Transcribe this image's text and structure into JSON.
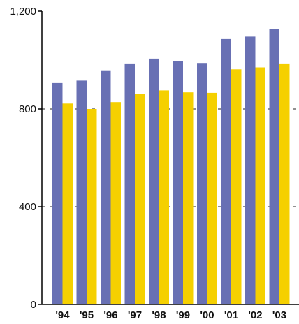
{
  "chart_data": {
    "type": "bar",
    "title": "",
    "xlabel": "",
    "ylabel": "",
    "categories": [
      "'94",
      "'95",
      "'96",
      "'97",
      "'98",
      "'99",
      "'00",
      "'01",
      "'02",
      "'03"
    ],
    "series": [
      {
        "color": "#6870b4",
        "values": [
          906,
          916,
          958,
          986,
          1006,
          996,
          988,
          1086,
          1096,
          1126
        ]
      },
      {
        "color": "#f5d000",
        "values": [
          822,
          800,
          828,
          860,
          876,
          868,
          866,
          962,
          970,
          986
        ]
      }
    ],
    "ylim": [
      0,
      1200
    ],
    "yticks": [
      0,
      400,
      800,
      1200
    ],
    "ytick_labels": [
      "0",
      "400",
      "800",
      "1,200"
    ],
    "grid": "horizontal dashed at 400 and 800",
    "legend": "none"
  }
}
